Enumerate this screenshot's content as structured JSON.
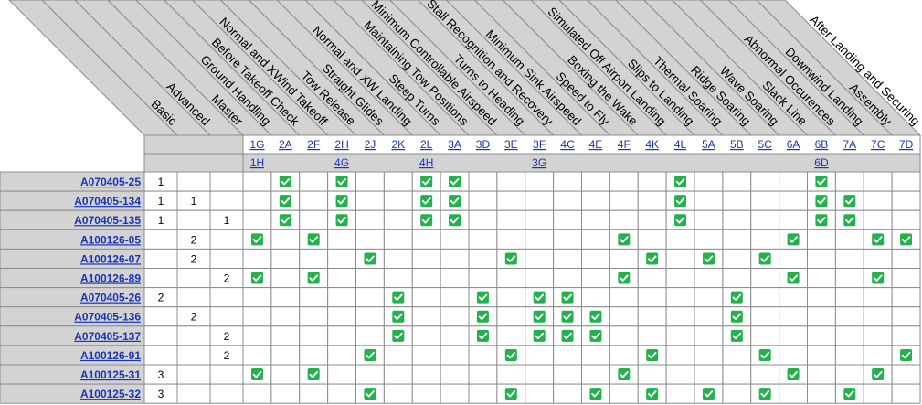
{
  "colors": {
    "header_gray": "#d3d3d3",
    "grid_line": "#8c8c8c",
    "link": "#1a35b8",
    "check_fill": "#22b14c",
    "check_mark": "#ffffff"
  },
  "icons": {
    "check": "green-checkbox-icon"
  },
  "level_headers": [
    "Basic",
    "Advanced",
    "Master"
  ],
  "skill_headers": [
    "Ground Handling",
    "Before Takeoff Check",
    "Normal and XWind Takeoff",
    "Tow Release",
    "Straight Glides",
    "Normal and XW Landing",
    "Steep Turns",
    "Maintaining Tow Positions",
    "Minimum Controllable Airspeed",
    "Turns to Heading",
    "Stall Recognition and Recovery",
    "Minimum Sink Airspeed",
    "Speed to Fly",
    "Boxing the Wake",
    "Simulated Off Airport Landing",
    "Slips to Landing",
    "Thermal Soaring",
    "Ridge Soaring",
    "Wave Soaring",
    "Slack Line",
    "Abnormal Occurences",
    "Downwind Landing",
    "Assembly",
    "After Landing and Securing"
  ],
  "column_codes": [
    "1G",
    "2A",
    "2F",
    "2H",
    "2J",
    "2K",
    "2L",
    "3A",
    "3D",
    "3E",
    "3F",
    "4C",
    "4E",
    "4F",
    "4K",
    "4L",
    "5A",
    "5B",
    "5C",
    "6A",
    "6B",
    "7A",
    "7C",
    "7D"
  ],
  "secondary_codes": [
    "1H",
    "",
    "",
    "4G",
    "",
    "",
    "4H",
    "",
    "",
    "",
    "3G",
    "",
    "",
    "",
    "",
    "",
    "",
    "",
    "",
    "",
    "6D",
    "",
    "",
    ""
  ],
  "rows": [
    {
      "id": "A070405-25",
      "levels": [
        "1",
        "",
        ""
      ],
      "checks": [
        1,
        3,
        6,
        7,
        15,
        20
      ]
    },
    {
      "id": "A070405-134",
      "levels": [
        "1",
        "1",
        ""
      ],
      "checks": [
        1,
        3,
        6,
        7,
        15,
        20,
        21
      ]
    },
    {
      "id": "A070405-135",
      "levels": [
        "1",
        "",
        "1"
      ],
      "checks": [
        1,
        3,
        6,
        7,
        15,
        20,
        21
      ]
    },
    {
      "id": "A100126-05",
      "levels": [
        "",
        "2",
        ""
      ],
      "checks": [
        0,
        2,
        13,
        19,
        22,
        23
      ]
    },
    {
      "id": "A100126-07",
      "levels": [
        "",
        "2",
        ""
      ],
      "checks": [
        4,
        9,
        14,
        16,
        18
      ]
    },
    {
      "id": "A100126-89",
      "levels": [
        "",
        "",
        "2"
      ],
      "checks": [
        0,
        2,
        13,
        19,
        22
      ]
    },
    {
      "id": "A070405-26",
      "levels": [
        "2",
        "",
        ""
      ],
      "checks": [
        5,
        8,
        10,
        11,
        17
      ]
    },
    {
      "id": "A070405-136",
      "levels": [
        "",
        "2",
        ""
      ],
      "checks": [
        5,
        8,
        10,
        11,
        12,
        17
      ]
    },
    {
      "id": "A070405-137",
      "levels": [
        "",
        "",
        "2"
      ],
      "checks": [
        5,
        8,
        10,
        11,
        12,
        17
      ]
    },
    {
      "id": "A100126-91",
      "levels": [
        "",
        "",
        "2"
      ],
      "checks": [
        4,
        9,
        14,
        18,
        23
      ]
    },
    {
      "id": "A100125-31",
      "levels": [
        "3",
        "",
        ""
      ],
      "checks": [
        0,
        2,
        13,
        19,
        22
      ]
    },
    {
      "id": "A100125-32",
      "levels": [
        "3",
        "",
        ""
      ],
      "checks": [
        4,
        9,
        12,
        14,
        16,
        18,
        21
      ]
    }
  ]
}
